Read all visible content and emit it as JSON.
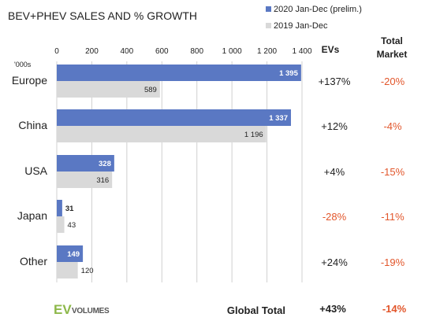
{
  "chart_data": {
    "type": "bar",
    "orientation": "horizontal",
    "title": "BEV+PHEV SALES AND % GROWTH",
    "unit_label": "'000s",
    "xlim": [
      0,
      1400
    ],
    "x_ticks": [
      0,
      200,
      400,
      600,
      800,
      1000,
      1200,
      1400
    ],
    "x_tick_labels": [
      "0",
      "200",
      "400",
      "600",
      "800",
      "1 000",
      "1 200",
      "1 400"
    ],
    "grid": true,
    "legend_position": "top-right",
    "categories": [
      "Europe",
      "China",
      "USA",
      "Japan",
      "Other"
    ],
    "series": [
      {
        "name": "2020 Jan-Dec (prelim.)",
        "color": "#5a78c3",
        "values": [
          1395,
          1337,
          328,
          31,
          149
        ],
        "labels": [
          "1 395",
          "1 337",
          "328",
          "31",
          "149"
        ]
      },
      {
        "name": "2019 Jan-Dec",
        "color": "#d9d9d9",
        "values": [
          589,
          1196,
          316,
          43,
          120
        ],
        "labels": [
          "589",
          "1 196",
          "316",
          "43",
          "120"
        ]
      }
    ]
  },
  "growth_table": {
    "ev_header": "EVs",
    "market_header_line1": "Total",
    "market_header_line2": "Market",
    "ev_growth": [
      "+137%",
      "+12%",
      "+4%",
      "-28%",
      "+24%"
    ],
    "market_growth": [
      "-20%",
      "-4%",
      "-15%",
      "-11%",
      "-19%"
    ]
  },
  "global_total": {
    "label": "Global Total",
    "ev": "+43%",
    "market": "-14%"
  },
  "logo": {
    "part1": "EV",
    "part2": "VOLUMES"
  },
  "colors": {
    "negative": "#e2562b",
    "grid": "#d0d0d0",
    "logo_green": "#8db84a"
  }
}
